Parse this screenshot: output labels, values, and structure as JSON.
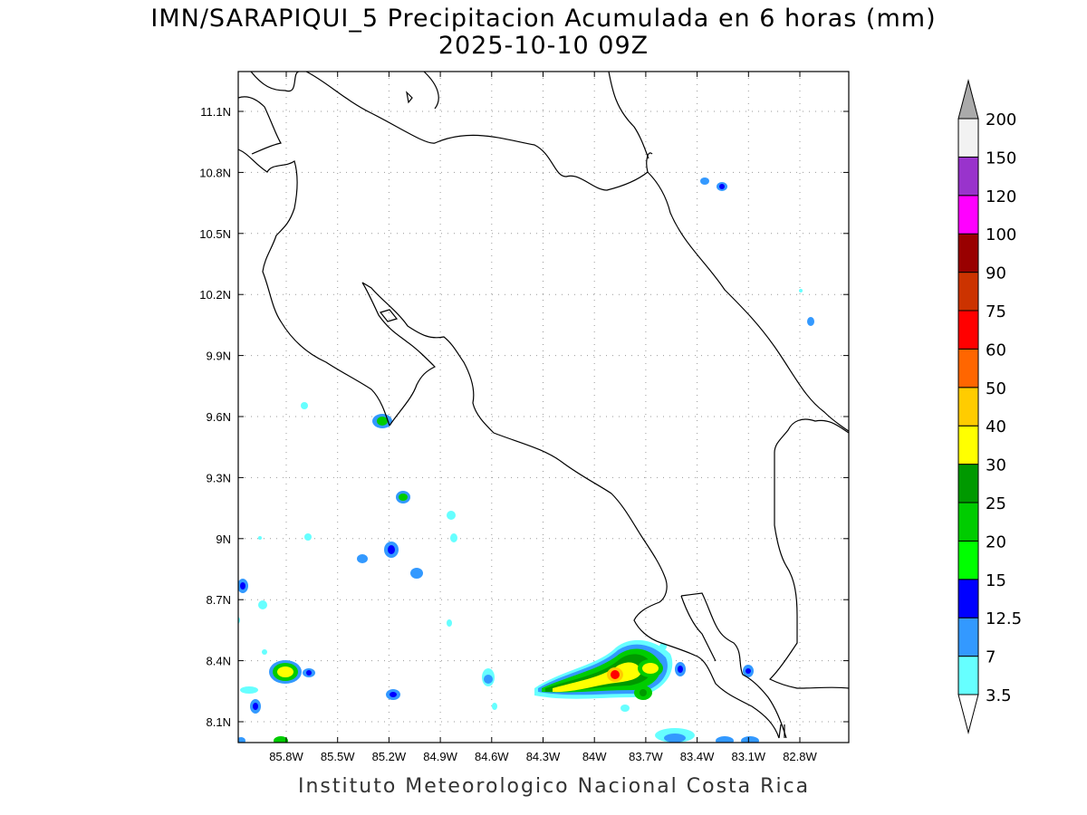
{
  "title_line1": "IMN/SARAPIQUI_5 Precipitacion Acumulada en 6 horas (mm)",
  "title_line2": "2025-10-10 09Z",
  "footer": "Instituto Meteorologico Nacional Costa Rica",
  "map": {
    "lon_range": [
      -86.0,
      -82.55
    ],
    "lat_range": [
      8.0,
      11.3
    ],
    "lat_ticks": [
      "8.1N",
      "8.4N",
      "8.7N",
      "9N",
      "9.3N",
      "9.6N",
      "9.9N",
      "10.2N",
      "10.5N",
      "10.8N",
      "11.1N"
    ],
    "lon_ticks": [
      "85.8W",
      "85.5W",
      "85.2W",
      "84.9W",
      "84.6W",
      "84.3W",
      "84W",
      "83.7W",
      "83.4W",
      "83.1W",
      "82.8W"
    ],
    "grid": true
  },
  "colorbar": {
    "labels": [
      "3.5",
      "7",
      "12.5",
      "15",
      "20",
      "25",
      "30",
      "40",
      "50",
      "60",
      "75",
      "90",
      "100",
      "120",
      "150",
      "200"
    ],
    "colors": [
      "#ffffff",
      "#66ffff",
      "#3399ff",
      "#0000ff",
      "#00ff00",
      "#00cc00",
      "#009900",
      "#ffff00",
      "#ffcc00",
      "#ff6600",
      "#ff0000",
      "#cc3300",
      "#990000",
      "#ff00ff",
      "#9933cc",
      "#f2f2f2",
      "#aaaaaa"
    ]
  }
}
